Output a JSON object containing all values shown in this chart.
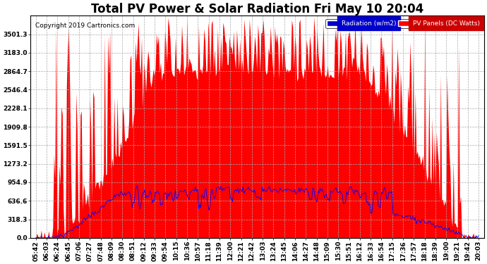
{
  "title": "Total PV Power & Solar Radiation Fri May 10 20:04",
  "copyright": "Copyright 2019 Cartronics.com",
  "legend_labels": [
    "Radiation (w/m2)",
    "PV Panels (DC Watts)"
  ],
  "legend_colors": [
    "#0000cc",
    "#ff0000"
  ],
  "ymax": 3819.3,
  "ymin": 0.0,
  "ytick_step": 318.3,
  "background_color": "#ffffff",
  "plot_bg_color": "#ffffff",
  "grid_color": "#aaaaaa",
  "x_labels": [
    "05:42",
    "06:03",
    "06:24",
    "06:45",
    "07:06",
    "07:27",
    "07:48",
    "08:09",
    "08:30",
    "08:51",
    "09:12",
    "09:33",
    "09:54",
    "10:15",
    "10:36",
    "10:57",
    "11:18",
    "11:39",
    "12:00",
    "12:21",
    "12:42",
    "13:03",
    "13:24",
    "13:45",
    "14:06",
    "14:27",
    "14:48",
    "15:09",
    "15:30",
    "15:51",
    "16:12",
    "16:33",
    "16:54",
    "17:15",
    "17:36",
    "17:57",
    "18:18",
    "18:39",
    "19:00",
    "19:21",
    "19:42",
    "20:03"
  ],
  "title_fontsize": 12,
  "axis_fontsize": 6.5,
  "copyright_fontsize": 6.5
}
